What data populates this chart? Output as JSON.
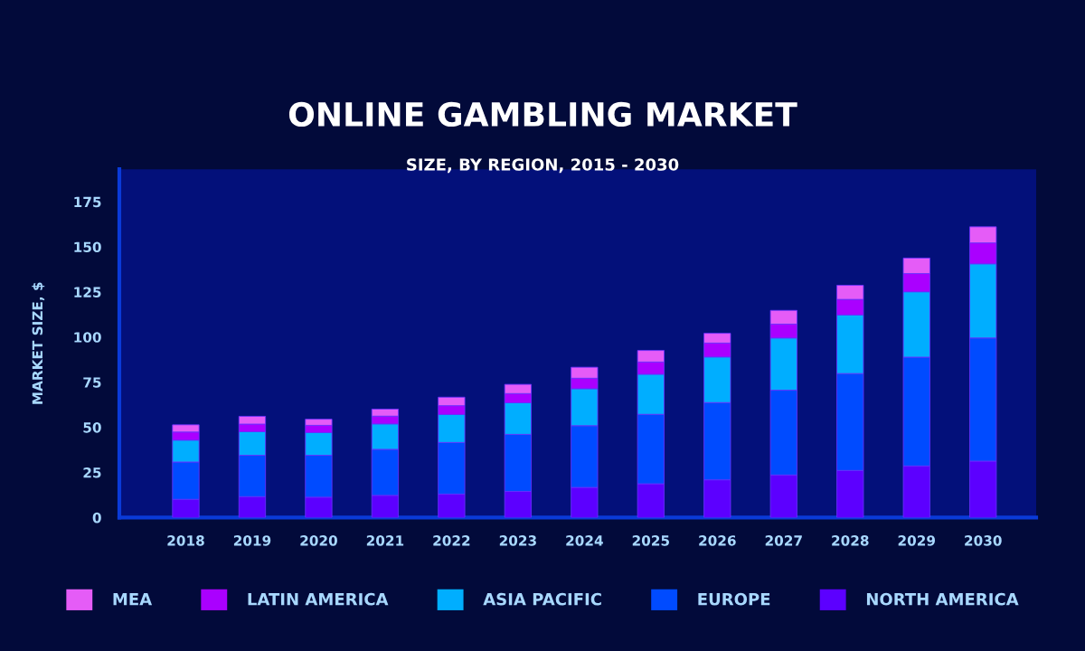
{
  "chart_data": {
    "type": "bar",
    "stacked": true,
    "title": "ONLINE GAMBLING MARKET",
    "subtitle": "SIZE, BY REGION, 2015 - 2030",
    "ylabel": "MARKET SIZE, $",
    "categories": [
      "2018",
      "2019",
      "2020",
      "2021",
      "2022",
      "2023",
      "2024",
      "2025",
      "2026",
      "2027",
      "2028",
      "2029",
      "2030"
    ],
    "series": [
      {
        "name": "NORTH AMERICA",
        "color": "#5c00ff",
        "values": [
          10.1,
          11.6,
          11.3,
          12.3,
          13.0,
          14.5,
          16.7,
          18.7,
          20.9,
          23.6,
          26.1,
          28.6,
          31.3
        ]
      },
      {
        "name": "EUROPE",
        "color": "#004bff",
        "values": [
          20.7,
          22.9,
          23.2,
          25.5,
          28.6,
          31.6,
          34.2,
          38.5,
          42.8,
          47.0,
          53.7,
          60.3,
          68.2
        ]
      },
      {
        "name": "ASIA PACIFIC",
        "color": "#00aeff",
        "values": [
          12.1,
          13.1,
          12.6,
          14.1,
          15.5,
          17.5,
          20.5,
          22.2,
          25.3,
          28.9,
          32.5,
          36.2,
          41.1
        ]
      },
      {
        "name": "LATIN AMERICA",
        "color": "#aa00ff",
        "values": [
          4.5,
          4.2,
          4.0,
          4.3,
          4.9,
          5.1,
          5.8,
          6.8,
          7.7,
          7.7,
          8.6,
          10.1,
          11.6
        ]
      },
      {
        "name": "MEA",
        "color": "#e55cf7",
        "values": [
          4.0,
          4.3,
          3.4,
          3.9,
          4.7,
          5.1,
          6.1,
          6.4,
          5.4,
          7.6,
          7.8,
          8.6,
          8.9
        ]
      }
    ],
    "ylim": [
      0,
      193
    ],
    "yticks": [
      0,
      25,
      50,
      75,
      100,
      125,
      150,
      175
    ],
    "grid": false,
    "legend": "bottom"
  }
}
